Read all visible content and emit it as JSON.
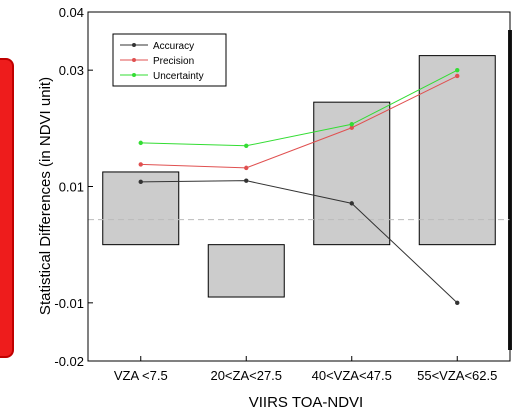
{
  "chart_data": {
    "type": "bar+line",
    "title": "",
    "xlabel": "VIIRS TOA-NDVI",
    "ylabel": "Statistical Differences (in NDVI unit)",
    "ylim": [
      -0.02,
      0.04
    ],
    "yticks": [
      -0.02,
      -0.01,
      0.01,
      0.03,
      0.04
    ],
    "ytick_labels": [
      "-0.02",
      "-0.01",
      "0.01",
      "0.03",
      "0.04"
    ],
    "categories": [
      "VZA <7.5",
      "20<ZA<27.5",
      "40<VZA<47.5",
      "55<VZA<62.5"
    ],
    "bars": {
      "values": [
        0.0125,
        -0.009,
        0.0245,
        0.0325
      ],
      "color": "#cccccc"
    },
    "reference_line": {
      "value": 0.0043,
      "style": "dashed",
      "color": "#bbbbbb"
    },
    "series": [
      {
        "name": "Accuracy",
        "color": "#333333",
        "values": [
          0.0108,
          0.011,
          0.0071,
          -0.01
        ]
      },
      {
        "name": "Precision",
        "color": "#e05050",
        "values": [
          0.0138,
          0.0132,
          0.0201,
          0.029
        ]
      },
      {
        "name": "Uncertainty",
        "color": "#33dd33",
        "values": [
          0.0175,
          0.017,
          0.0207,
          0.03
        ]
      }
    ],
    "grid": false,
    "legend_position": "top-left"
  }
}
